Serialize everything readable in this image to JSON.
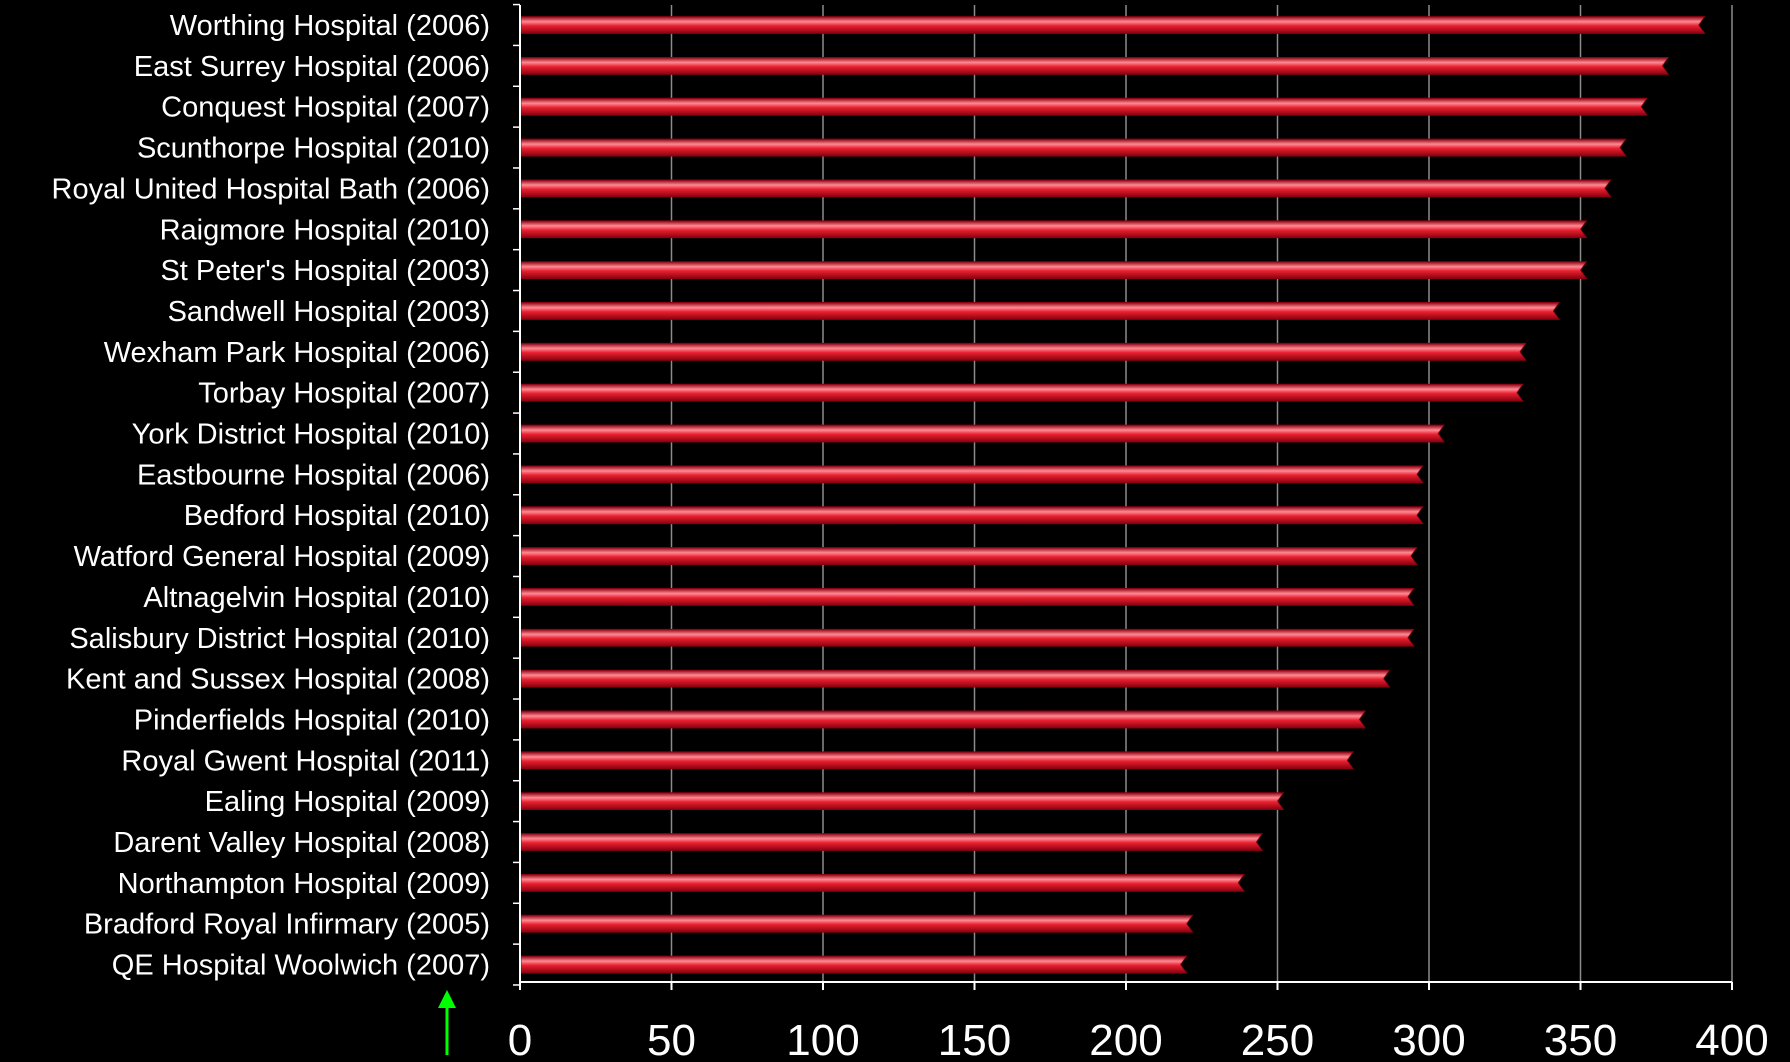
{
  "chart_data": {
    "type": "bar",
    "orientation": "horizontal",
    "categories": [
      "Worthing Hospital (2006)",
      "East Surrey Hospital (2006)",
      "Conquest Hospital (2007)",
      "Scunthorpe Hospital (2010)",
      "Royal United Hospital Bath (2006)",
      "Raigmore Hospital (2010)",
      "St Peter's Hospital (2003)",
      "Sandwell Hospital (2003)",
      "Wexham Park Hospital (2006)",
      "Torbay Hospital (2007)",
      "York District Hospital (2010)",
      "Eastbourne Hospital (2006)",
      "Bedford Hospital (2010)",
      "Watford General Hospital (2009)",
      "Altnagelvin Hospital (2010)",
      "Salisbury District Hospital (2010)",
      "Kent and Sussex Hospital (2008)",
      "Pinderfields Hospital (2010)",
      "Royal Gwent Hospital (2011)",
      "Ealing Hospital (2009)",
      "Darent Valley Hospital (2008)",
      "Northampton Hospital (2009)",
      "Bradford Royal Infirmary (2005)",
      "QE Hospital Woolwich (2007)"
    ],
    "values": [
      391,
      379,
      372,
      365,
      360,
      352,
      352,
      343,
      332,
      331,
      305,
      298,
      298,
      296,
      295,
      295,
      287,
      279,
      275,
      252,
      245,
      239,
      222,
      220
    ],
    "xlim": [
      0,
      400
    ],
    "xticks": [
      "0",
      "50",
      "100",
      "150",
      "200",
      "250",
      "300",
      "350",
      "400"
    ],
    "title": "",
    "xlabel": "",
    "ylabel": "",
    "grid": "vertical",
    "legend": "none",
    "bar_color": "#e8202f",
    "bar_highlight": "#ff8a94",
    "bar_shadow": "#8a0010",
    "background": "#000000",
    "grid_color": "#8c8c8c",
    "marker_arrow_color": "#00ff00"
  }
}
